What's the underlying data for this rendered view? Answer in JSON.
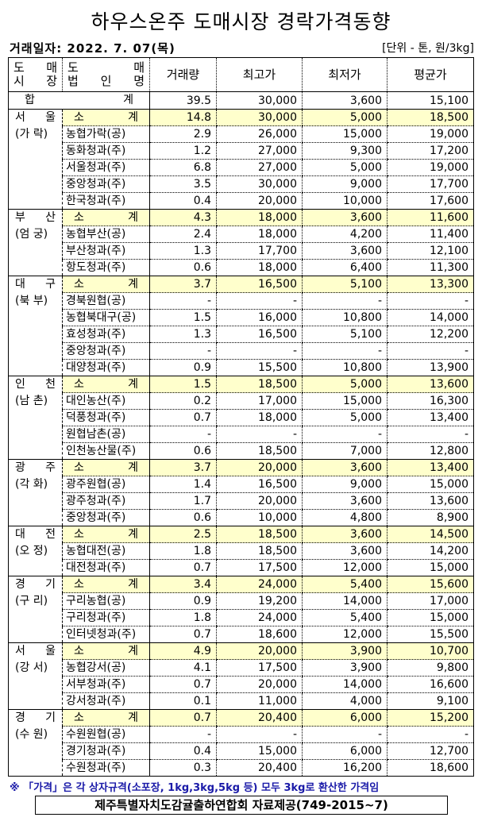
{
  "title": "하우스온주 도매시장 경락가격동향",
  "date": "거래일자: 2022.  7. 07(목)",
  "unit": "[단위 - 톤, 원/3kg]",
  "headers": {
    "market": [
      "도 매",
      "시 장"
    ],
    "corp": [
      "도 매",
      "법 인 명"
    ],
    "volume": "거래량",
    "max": "최고가",
    "min": "최저가",
    "avg": "평균가"
  },
  "total": {
    "label": "합계",
    "volume": "39.5",
    "max": "30,000",
    "min": "3,600",
    "avg": "15,100"
  },
  "markets": [
    {
      "name": "서 울",
      "sub": "(가 락)",
      "rows": [
        {
          "corp": "소계",
          "volume": "14.8",
          "max": "30,000",
          "min": "5,000",
          "avg": "18,500"
        },
        {
          "corp": "농협가락(공)",
          "volume": "2.9",
          "max": "26,000",
          "min": "15,000",
          "avg": "19,000"
        },
        {
          "corp": "동화청과(주)",
          "volume": "1.2",
          "max": "27,000",
          "min": "9,300",
          "avg": "17,200"
        },
        {
          "corp": "서울청과(주)",
          "volume": "6.8",
          "max": "27,000",
          "min": "5,000",
          "avg": "19,000"
        },
        {
          "corp": "중앙청과(주)",
          "volume": "3.5",
          "max": "30,000",
          "min": "9,000",
          "avg": "17,700"
        },
        {
          "corp": "한국청과(주)",
          "volume": "0.4",
          "max": "20,000",
          "min": "10,000",
          "avg": "17,600"
        }
      ]
    },
    {
      "name": "부 산",
      "sub": "(엄 궁)",
      "rows": [
        {
          "corp": "소계",
          "volume": "4.3",
          "max": "18,000",
          "min": "3,600",
          "avg": "11,600"
        },
        {
          "corp": "농협부산(공)",
          "volume": "2.4",
          "max": "18,000",
          "min": "4,200",
          "avg": "11,400"
        },
        {
          "corp": "부산청과(주)",
          "volume": "1.3",
          "max": "17,700",
          "min": "3,600",
          "avg": "12,100"
        },
        {
          "corp": "항도청과(주)",
          "volume": "0.6",
          "max": "18,000",
          "min": "6,400",
          "avg": "11,300"
        }
      ]
    },
    {
      "name": "대 구",
      "sub": "(북 부)",
      "rows": [
        {
          "corp": "소계",
          "volume": "3.7",
          "max": "16,500",
          "min": "5,100",
          "avg": "13,300"
        },
        {
          "corp": "경북원협(공)",
          "volume": "-",
          "max": "-",
          "min": "-",
          "avg": "-"
        },
        {
          "corp": "농협북대구(공)",
          "volume": "1.5",
          "max": "16,000",
          "min": "10,800",
          "avg": "14,000"
        },
        {
          "corp": "효성청과(주)",
          "volume": "1.3",
          "max": "16,500",
          "min": "5,100",
          "avg": "12,200"
        },
        {
          "corp": "중앙청과(주)",
          "volume": "-",
          "max": "-",
          "min": "-",
          "avg": "-"
        },
        {
          "corp": "대양청과(주)",
          "volume": "0.9",
          "max": "15,500",
          "min": "10,800",
          "avg": "13,900"
        }
      ]
    },
    {
      "name": "인 천",
      "sub": "(남 촌)",
      "rows": [
        {
          "corp": "소계",
          "volume": "1.5",
          "max": "18,500",
          "min": "5,000",
          "avg": "13,600"
        },
        {
          "corp": "대인농산(주)",
          "volume": "0.2",
          "max": "17,000",
          "min": "15,000",
          "avg": "16,300"
        },
        {
          "corp": "덕풍청과(주)",
          "volume": "0.7",
          "max": "18,000",
          "min": "5,000",
          "avg": "13,400"
        },
        {
          "corp": "원협남촌(공)",
          "volume": "-",
          "max": "-",
          "min": "-",
          "avg": "-"
        },
        {
          "corp": "인천농산물(주)",
          "volume": "0.6",
          "max": "18,500",
          "min": "7,000",
          "avg": "12,800"
        }
      ]
    },
    {
      "name": "광 주",
      "sub": "(각 화)",
      "rows": [
        {
          "corp": "소계",
          "volume": "3.7",
          "max": "20,000",
          "min": "3,600",
          "avg": "13,400"
        },
        {
          "corp": "광주원협(공)",
          "volume": "1.4",
          "max": "16,500",
          "min": "9,000",
          "avg": "15,000"
        },
        {
          "corp": "광주청과(주)",
          "volume": "1.7",
          "max": "20,000",
          "min": "3,600",
          "avg": "13,600"
        },
        {
          "corp": "중앙청과(주)",
          "volume": "0.6",
          "max": "10,000",
          "min": "4,800",
          "avg": "8,900"
        }
      ]
    },
    {
      "name": "대 전",
      "sub": "(오 정)",
      "rows": [
        {
          "corp": "소계",
          "volume": "2.5",
          "max": "18,500",
          "min": "3,600",
          "avg": "14,500"
        },
        {
          "corp": "농협대전(공)",
          "volume": "1.8",
          "max": "18,500",
          "min": "3,600",
          "avg": "14,200"
        },
        {
          "corp": "대전청과(주)",
          "volume": "0.7",
          "max": "17,500",
          "min": "12,000",
          "avg": "15,000"
        }
      ]
    },
    {
      "name": "경 기",
      "sub": "(구 리)",
      "rows": [
        {
          "corp": "소계",
          "volume": "3.4",
          "max": "24,000",
          "min": "5,400",
          "avg": "15,600"
        },
        {
          "corp": "구리농협(공)",
          "volume": "0.9",
          "max": "19,200",
          "min": "14,000",
          "avg": "17,000"
        },
        {
          "corp": "구리청과(주)",
          "volume": "1.8",
          "max": "24,000",
          "min": "5,400",
          "avg": "15,000"
        },
        {
          "corp": "인터넷청과(주)",
          "volume": "0.7",
          "max": "18,600",
          "min": "12,000",
          "avg": "15,500"
        }
      ]
    },
    {
      "name": "서 울",
      "sub": "(강 서)",
      "rows": [
        {
          "corp": "소계",
          "volume": "4.9",
          "max": "20,000",
          "min": "3,900",
          "avg": "10,700"
        },
        {
          "corp": "농협강서(공)",
          "volume": "4.1",
          "max": "17,500",
          "min": "3,900",
          "avg": "9,800"
        },
        {
          "corp": "서부청과(주)",
          "volume": "0.7",
          "max": "20,000",
          "min": "14,000",
          "avg": "16,600"
        },
        {
          "corp": "강서청과(주)",
          "volume": "0.1",
          "max": "11,000",
          "min": "4,000",
          "avg": "9,100"
        }
      ]
    },
    {
      "name": "경 기",
      "sub": "(수 원)",
      "rows": [
        {
          "corp": "소계",
          "volume": "0.7",
          "max": "20,400",
          "min": "6,000",
          "avg": "15,200"
        },
        {
          "corp": "수원원협(공)",
          "volume": "-",
          "max": "-",
          "min": "-",
          "avg": "-"
        },
        {
          "corp": "경기청과(주)",
          "volume": "0.4",
          "max": "15,000",
          "min": "6,000",
          "avg": "12,700"
        },
        {
          "corp": "수원청과(주)",
          "volume": "0.3",
          "max": "20,400",
          "min": "16,200",
          "avg": "18,600"
        }
      ]
    }
  ],
  "note": "※ 「가격」은 각 상자규격(소포장, 1kg,3kg,5kg 등) 모두 3kg로 환산한 가격임",
  "source": "제주특별자치도감귤출하연합회 자료제공(749-2015~7)",
  "colors": {
    "subtotal_bg": "#FFFFCC",
    "note": "#1A1AA8"
  }
}
